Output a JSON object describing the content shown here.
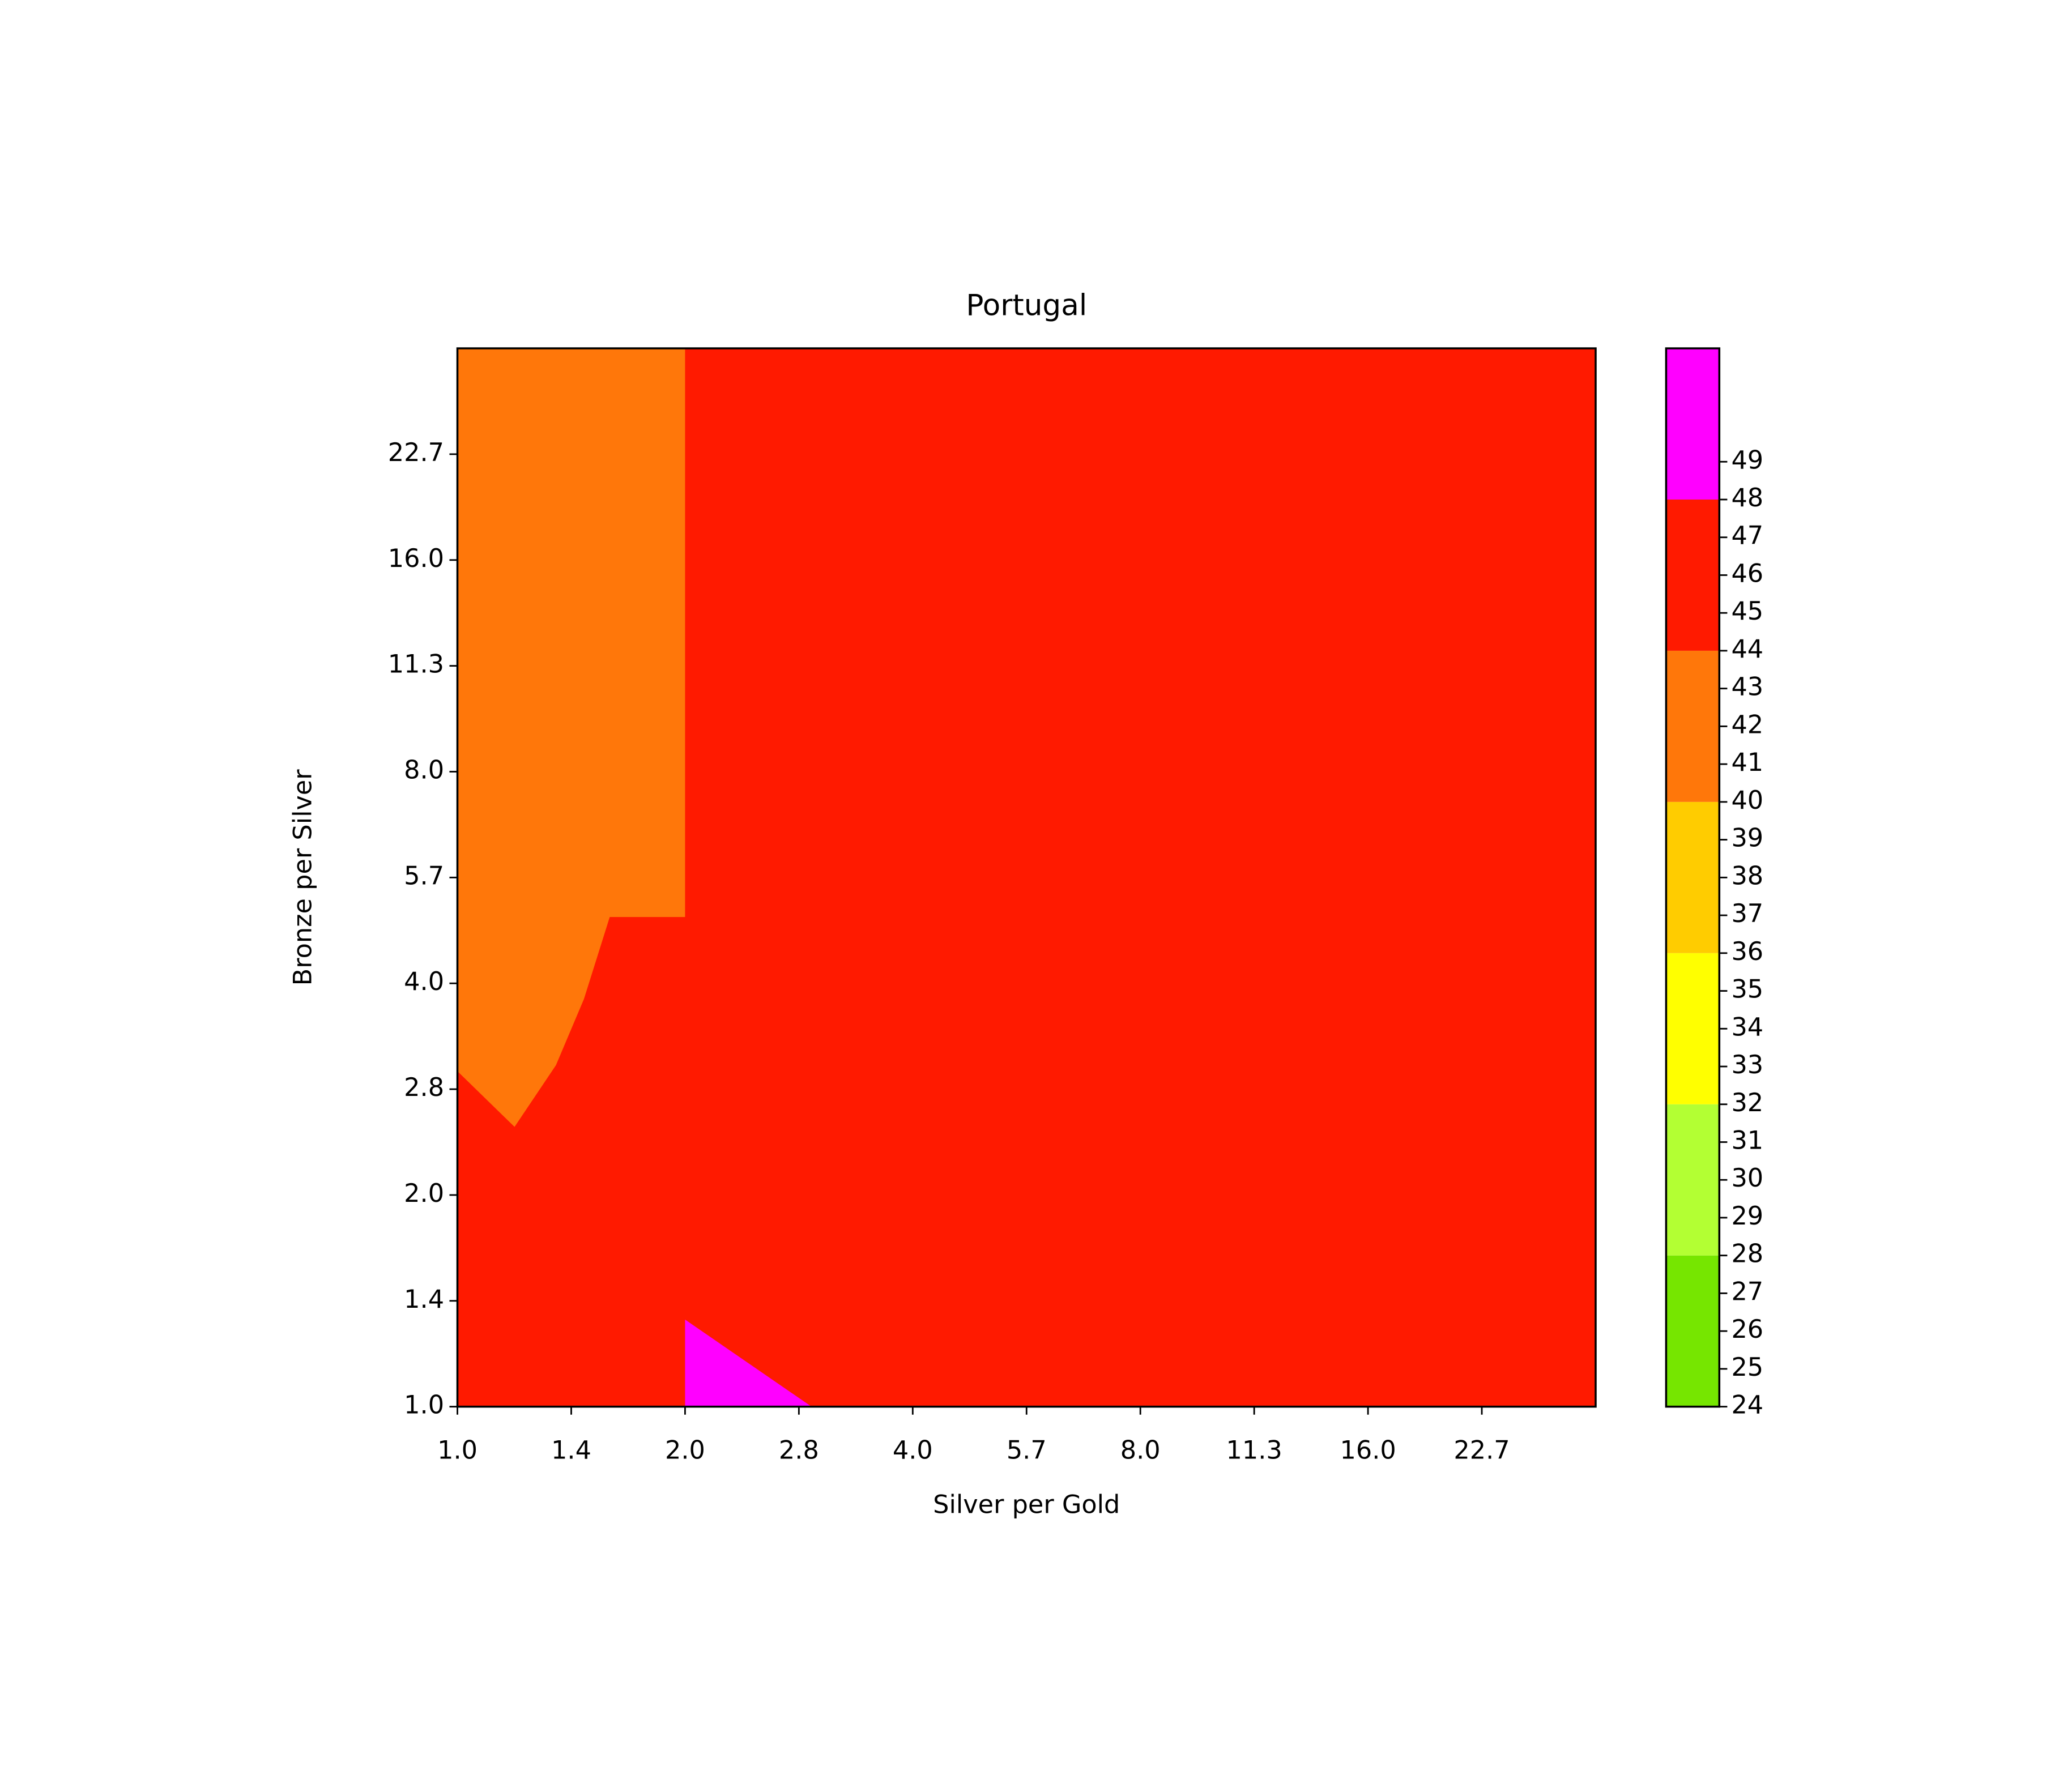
{
  "chart_data": {
    "type": "contour",
    "title": "Portugal",
    "xlabel": "Silver per Gold",
    "ylabel": "Bronze per Silver",
    "xscale": "log",
    "yscale": "log",
    "xlim": [
      1,
      32
    ],
    "ylim": [
      1,
      32
    ],
    "xticks": [
      {
        "value": 1,
        "label": "1.0"
      },
      {
        "value": 1.4142,
        "label": "1.4"
      },
      {
        "value": 2,
        "label": "2.0"
      },
      {
        "value": 2.8284,
        "label": "2.8"
      },
      {
        "value": 4,
        "label": "4.0"
      },
      {
        "value": 5.6569,
        "label": "5.7"
      },
      {
        "value": 8,
        "label": "8.0"
      },
      {
        "value": 11.3137,
        "label": "11.3"
      },
      {
        "value": 16,
        "label": "16.0"
      },
      {
        "value": 22.6274,
        "label": "22.7"
      }
    ],
    "yticks": [
      {
        "value": 1,
        "label": "1.0"
      },
      {
        "value": 1.4142,
        "label": "1.4"
      },
      {
        "value": 2,
        "label": "2.0"
      },
      {
        "value": 2.8284,
        "label": "2.8"
      },
      {
        "value": 4,
        "label": "4.0"
      },
      {
        "value": 5.6569,
        "label": "5.7"
      },
      {
        "value": 8,
        "label": "8.0"
      },
      {
        "value": 11.3137,
        "label": "11.3"
      },
      {
        "value": 16,
        "label": "16.0"
      },
      {
        "value": 22.6274,
        "label": "22.7"
      }
    ],
    "regions": [
      {
        "levels": [
          44,
          48
        ],
        "x": [
          1,
          32,
          32,
          1
        ],
        "y": [
          1,
          1,
          32,
          32
        ]
      },
      {
        "levels": [
          40,
          44
        ],
        "x": [
          1,
          2,
          2,
          1.59,
          1.47,
          1.35,
          1.19,
          1
        ],
        "y": [
          32,
          32,
          4.97,
          4.97,
          3.8,
          3.06,
          2.5,
          3.0
        ]
      },
      {
        "levels": [
          48,
          52
        ],
        "x": [
          2,
          2,
          2.94
        ],
        "y": [
          1,
          1.33,
          1
        ]
      }
    ],
    "colorbar": {
      "lim": [
        24,
        52
      ],
      "levels": [
        24,
        28,
        32,
        36,
        40,
        44,
        48,
        52
      ],
      "colors": [
        "#76e600",
        "#b3ff33",
        "#ffff00",
        "#ffcc00",
        "#ff770a",
        "#ff1a00",
        "#ff00ff"
      ],
      "ticks": [
        24,
        25,
        26,
        27,
        28,
        29,
        30,
        31,
        32,
        33,
        34,
        35,
        36,
        37,
        38,
        39,
        40,
        41,
        42,
        43,
        44,
        45,
        46,
        47,
        48,
        49
      ]
    }
  }
}
